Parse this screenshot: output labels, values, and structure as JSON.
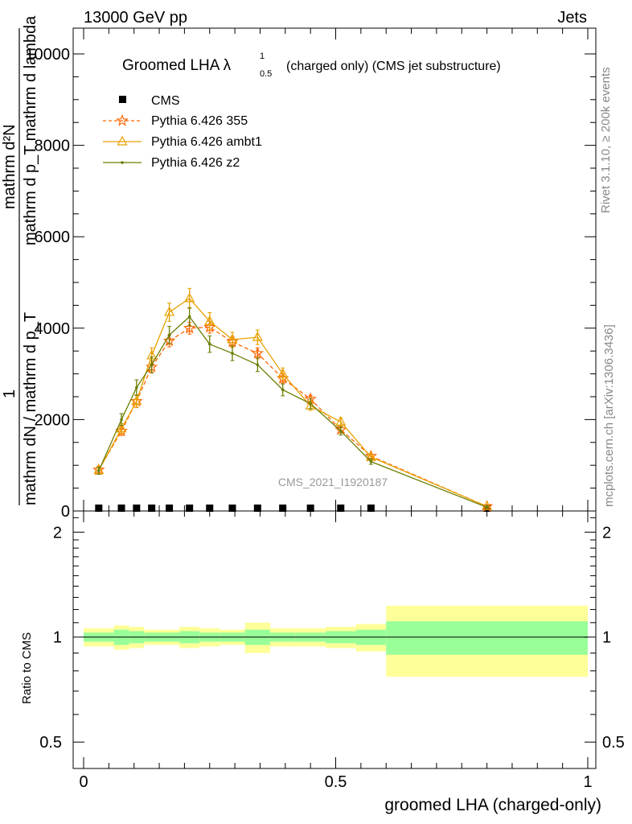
{
  "header": {
    "left": "13000 GeV pp",
    "right": "Jets"
  },
  "side_text": {
    "rivet": "Rivet 3.1.10, ≥ 200k events",
    "mcplots": "mcplots.cern.ch [arXiv:1306.3436]"
  },
  "watermark": "CMS_2021_I1920187",
  "chart_data": [
    {
      "type": "line",
      "title": "Groomed LHA λ",
      "title_sup": "1",
      "title_sub": "0.5",
      "title_suffix": "(charged only) (CMS jet substructure)",
      "ylabel_top": "mathrm d²N",
      "ylabel_bottom": "mathrm d p_T mathrm d lambda",
      "ylabel_sub": "T",
      "ylabel_left_num": "1",
      "ylabel_left_den": "mathrm dN / mathrm d p_T",
      "xlim": [
        0,
        1
      ],
      "ylim": [
        0,
        10500
      ],
      "yticks": [
        0,
        2000,
        4000,
        6000,
        8000,
        10000
      ],
      "ytick_labels": [
        "0",
        "2000",
        "4000",
        "6000",
        "8000",
        "10000"
      ],
      "x": [
        0.03,
        0.075,
        0.105,
        0.135,
        0.17,
        0.21,
        0.25,
        0.295,
        0.345,
        0.395,
        0.45,
        0.51,
        0.57,
        0.8
      ],
      "series": [
        {
          "name": "CMS",
          "color": "#000000",
          "marker": "square",
          "values": [
            10,
            10,
            10,
            10,
            10,
            10,
            10,
            10,
            10,
            10,
            10,
            10,
            10,
            10
          ]
        },
        {
          "name": "Pythia 6.426 355",
          "color": "#ff6600",
          "marker": "star",
          "dashed": true,
          "values": [
            900,
            1750,
            2400,
            3150,
            3720,
            4000,
            4020,
            3700,
            3450,
            2900,
            2450,
            1780,
            1200,
            100
          ],
          "errors": [
            80,
            100,
            130,
            130,
            130,
            130,
            130,
            120,
            120,
            100,
            80,
            70,
            50,
            20
          ]
        },
        {
          "name": "Pythia 6.426 ambt1",
          "color": "#e8a000",
          "marker": "triangle",
          "dashed": false,
          "values": [
            890,
            1800,
            2400,
            3400,
            4350,
            4650,
            4150,
            3750,
            3800,
            3000,
            2300,
            1950,
            1180,
            100
          ],
          "errors": [
            80,
            110,
            140,
            170,
            200,
            220,
            190,
            160,
            160,
            130,
            100,
            90,
            50,
            20
          ]
        },
        {
          "name": "Pythia 6.426 z2",
          "color": "#6b7d00",
          "marker": "dot",
          "dashed": false,
          "values": [
            880,
            2000,
            2700,
            3200,
            3850,
            4250,
            3650,
            3450,
            3200,
            2650,
            2350,
            1750,
            1080,
            80
          ],
          "errors": [
            80,
            130,
            170,
            170,
            190,
            200,
            180,
            160,
            150,
            130,
            110,
            90,
            60,
            20
          ]
        }
      ]
    },
    {
      "type": "area",
      "ylabel": "Ratio to CMS",
      "xlabel": "groomed LHA (charged-only)",
      "xlim": [
        0,
        1
      ],
      "ylim": [
        0.42,
        2.3
      ],
      "xticks": [
        0,
        0.5,
        1
      ],
      "xtick_labels": [
        "0",
        "0.5",
        "1"
      ],
      "yticks": [
        0.5,
        1,
        2
      ],
      "ytick_labels": [
        "0.5",
        "1",
        "2"
      ],
      "reference": 1,
      "bins": [
        {
          "lo": 0.0,
          "hi": 0.06,
          "stat": [
            0.97,
            1.03
          ],
          "total": [
            0.94,
            1.06
          ]
        },
        {
          "lo": 0.06,
          "hi": 0.09,
          "stat": [
            0.95,
            1.05
          ],
          "total": [
            0.92,
            1.08
          ]
        },
        {
          "lo": 0.09,
          "hi": 0.12,
          "stat": [
            0.96,
            1.04
          ],
          "total": [
            0.93,
            1.07
          ]
        },
        {
          "lo": 0.12,
          "hi": 0.15,
          "stat": [
            0.97,
            1.03
          ],
          "total": [
            0.95,
            1.05
          ]
        },
        {
          "lo": 0.15,
          "hi": 0.19,
          "stat": [
            0.97,
            1.03
          ],
          "total": [
            0.95,
            1.05
          ]
        },
        {
          "lo": 0.19,
          "hi": 0.23,
          "stat": [
            0.96,
            1.04
          ],
          "total": [
            0.93,
            1.07
          ]
        },
        {
          "lo": 0.23,
          "hi": 0.27,
          "stat": [
            0.97,
            1.03
          ],
          "total": [
            0.94,
            1.06
          ]
        },
        {
          "lo": 0.27,
          "hi": 0.32,
          "stat": [
            0.97,
            1.03
          ],
          "total": [
            0.95,
            1.05
          ]
        },
        {
          "lo": 0.32,
          "hi": 0.37,
          "stat": [
            0.95,
            1.05
          ],
          "total": [
            0.9,
            1.1
          ]
        },
        {
          "lo": 0.37,
          "hi": 0.42,
          "stat": [
            0.97,
            1.03
          ],
          "total": [
            0.94,
            1.06
          ]
        },
        {
          "lo": 0.42,
          "hi": 0.48,
          "stat": [
            0.97,
            1.03
          ],
          "total": [
            0.94,
            1.06
          ]
        },
        {
          "lo": 0.48,
          "hi": 0.54,
          "stat": [
            0.96,
            1.04
          ],
          "total": [
            0.93,
            1.07
          ]
        },
        {
          "lo": 0.54,
          "hi": 0.6,
          "stat": [
            0.95,
            1.05
          ],
          "total": [
            0.91,
            1.09
          ]
        },
        {
          "lo": 0.6,
          "hi": 1.0,
          "stat": [
            0.89,
            1.11
          ],
          "total": [
            0.77,
            1.23
          ]
        }
      ],
      "colors": {
        "stat": "#99ff99",
        "total": "#ffff99"
      }
    }
  ]
}
